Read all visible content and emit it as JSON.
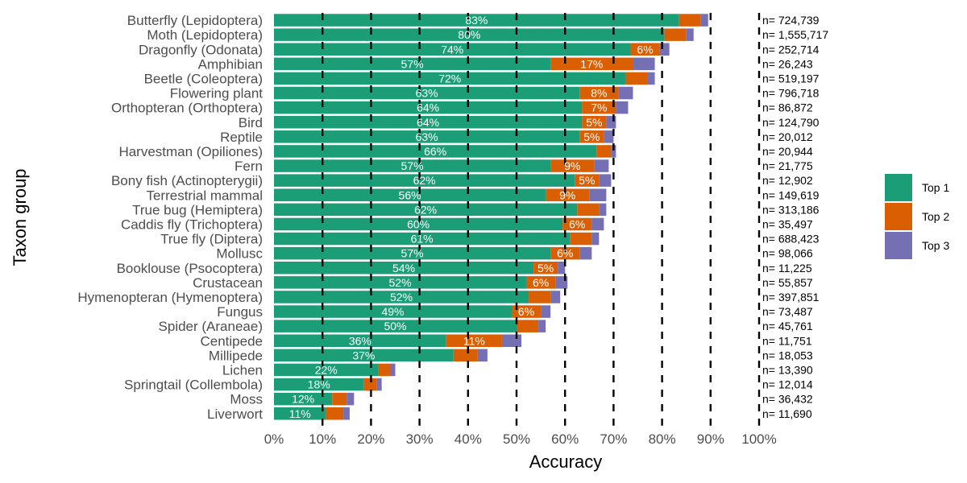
{
  "chart_data": {
    "type": "bar",
    "orientation": "horizontal",
    "stacked": true,
    "xlabel": "Accuracy",
    "ylabel": "Taxon group",
    "xlim": [
      0,
      100
    ],
    "x_ticks": [
      "0%",
      "10%",
      "20%",
      "30%",
      "40%",
      "50%",
      "60%",
      "70%",
      "80%",
      "90%",
      "100%"
    ],
    "reference_lines": [
      10,
      20,
      30,
      40,
      50,
      60,
      70,
      80,
      90,
      100
    ],
    "legend_position": "right",
    "colors": {
      "Top 1": "#1b9e77",
      "Top 2": "#d95f02",
      "Top 3": "#7570b3"
    },
    "categories": [
      "Butterfly (Lepidoptera)",
      "Moth (Lepidoptera)",
      "Dragonfly (Odonata)",
      "Amphibian",
      "Beetle (Coleoptera)",
      "Flowering plant",
      "Orthopteran (Orthoptera)",
      "Bird",
      "Reptile",
      "Harvestman (Opiliones)",
      "Fern",
      "Bony fish (Actinopterygii)",
      "Terrestrial mammal",
      "True bug (Hemiptera)",
      "Caddis fly (Trichoptera)",
      "True fly (Diptera)",
      "Mollusc",
      "Booklouse (Psocoptera)",
      "Crustacean",
      "Hymenopteran (Hymenoptera)",
      "Fungus",
      "Spider (Araneae)",
      "Centipede",
      "Millipede",
      "Lichen",
      "Springtail (Collembola)",
      "Moss",
      "Liverwort"
    ],
    "series": [
      {
        "name": "Top 1",
        "values": [
          83.5,
          80.5,
          73.5,
          57,
          72.5,
          63,
          63.5,
          63.5,
          63,
          66.5,
          57,
          62,
          56,
          62.5,
          59.5,
          61,
          57,
          53.5,
          52,
          52.5,
          49,
          50,
          35.5,
          37,
          21.5,
          18.5,
          12,
          10.7
        ]
      },
      {
        "name": "Top 2",
        "values": [
          4.5,
          4.5,
          6,
          17,
          4.5,
          8,
          7,
          5,
          5,
          3,
          9,
          5,
          9,
          4.5,
          6,
          4.5,
          6,
          5,
          6,
          4.5,
          6,
          4.5,
          11.5,
          5,
          2.5,
          2.7,
          3,
          3.6
        ]
      },
      {
        "name": "Top 3",
        "values": [
          1.5,
          1.5,
          2,
          4.5,
          1.5,
          3,
          2.5,
          2,
          2,
          1,
          3,
          2.5,
          3.5,
          1.5,
          2.5,
          1.5,
          2.5,
          1.5,
          2.5,
          2,
          2,
          1.5,
          4,
          2,
          1,
          1,
          1.5,
          1.3
        ]
      }
    ],
    "bar_labels": [
      [
        "83%",
        ""
      ],
      [
        "80%",
        ""
      ],
      [
        "74%",
        "6%"
      ],
      [
        "57%",
        "17%"
      ],
      [
        "72%",
        ""
      ],
      [
        "63%",
        "8%"
      ],
      [
        "64%",
        "7%"
      ],
      [
        "64%",
        "5%"
      ],
      [
        "63%",
        "5%"
      ],
      [
        "66%",
        ""
      ],
      [
        "57%",
        "9%"
      ],
      [
        "62%",
        "5%"
      ],
      [
        "56%",
        "9%"
      ],
      [
        "62%",
        ""
      ],
      [
        "60%",
        "6%"
      ],
      [
        "61%",
        ""
      ],
      [
        "57%",
        "6%"
      ],
      [
        "54%",
        "5%"
      ],
      [
        "52%",
        "6%"
      ],
      [
        "52%",
        ""
      ],
      [
        "49%",
        "6%"
      ],
      [
        "50%",
        ""
      ],
      [
        "36%",
        "11%"
      ],
      [
        "37%",
        ""
      ],
      [
        "22%",
        ""
      ],
      [
        "18%",
        ""
      ],
      [
        "12%",
        ""
      ],
      [
        "11%",
        ""
      ]
    ],
    "sample_sizes": [
      "n= 724,739",
      "n= 1,555,717",
      "n= 252,714",
      "n= 26,243",
      "n= 519,197",
      "n= 796,718",
      "n= 86,872",
      "n= 124,790",
      "n= 20,012",
      "n= 20,944",
      "n= 21,775",
      "n= 12,902",
      "n= 149,619",
      "n= 313,186",
      "n= 35,497",
      "n= 688,423",
      "n= 98,066",
      "n= 11,225",
      "n= 55,857",
      "n= 397,851",
      "n= 73,487",
      "n= 45,761",
      "n= 11,751",
      "n= 18,053",
      "n= 13,390",
      "n= 12,014",
      "n= 36,432",
      "n= 11,690"
    ]
  }
}
